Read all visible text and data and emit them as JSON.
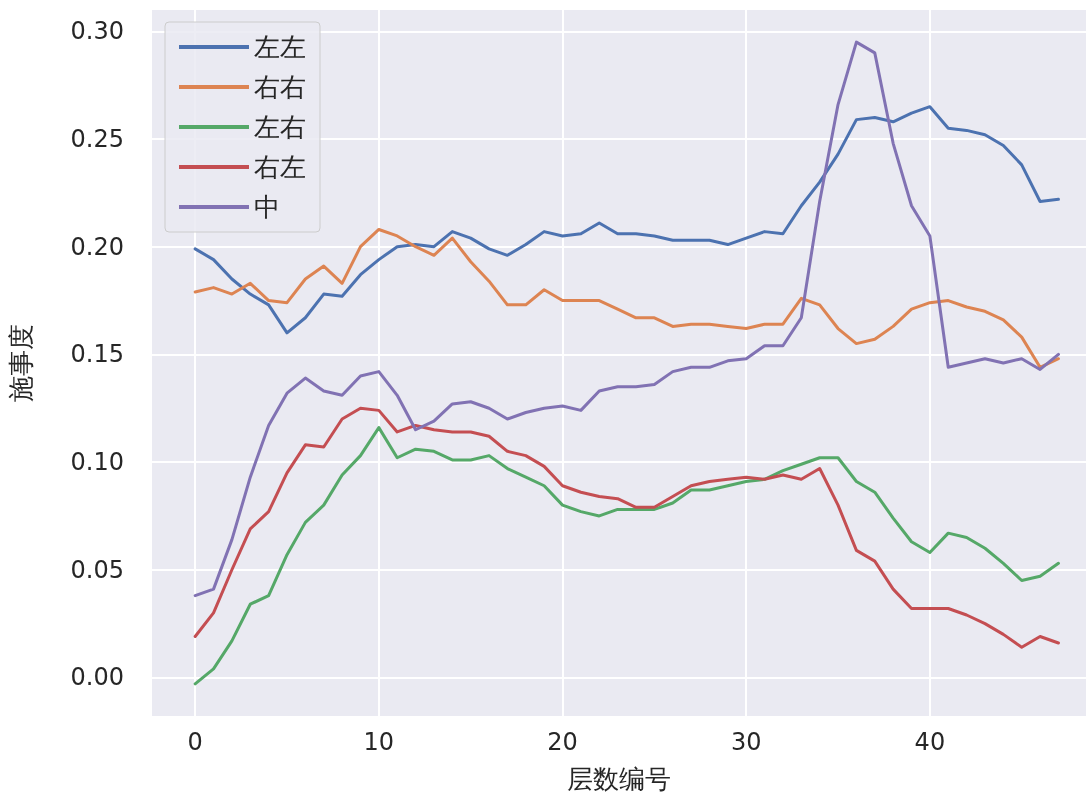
{
  "chart_data": {
    "type": "line",
    "xlabel": "层数编号",
    "ylabel": "施事度",
    "x": [
      0,
      1,
      2,
      3,
      4,
      5,
      6,
      7,
      8,
      9,
      10,
      11,
      12,
      13,
      14,
      15,
      16,
      17,
      18,
      19,
      20,
      21,
      22,
      23,
      24,
      25,
      26,
      27,
      28,
      29,
      30,
      31,
      32,
      33,
      34,
      35,
      36,
      37,
      38,
      39,
      40,
      41,
      42,
      43,
      44,
      45,
      46,
      47
    ],
    "series": [
      {
        "name": "左左",
        "color": "#4c72b0",
        "values": [
          0.199,
          0.194,
          0.185,
          0.178,
          0.173,
          0.16,
          0.167,
          0.178,
          0.177,
          0.187,
          0.194,
          0.2,
          0.201,
          0.2,
          0.207,
          0.204,
          0.199,
          0.196,
          0.201,
          0.207,
          0.205,
          0.206,
          0.211,
          0.206,
          0.206,
          0.205,
          0.203,
          0.203,
          0.203,
          0.201,
          0.204,
          0.207,
          0.206,
          0.219,
          0.23,
          0.243,
          0.259,
          0.26,
          0.258,
          0.262,
          0.265,
          0.255,
          0.254,
          0.252,
          0.247,
          0.238,
          0.221,
          0.222
        ]
      },
      {
        "name": "右右",
        "color": "#dd8452",
        "values": [
          0.179,
          0.181,
          0.178,
          0.183,
          0.175,
          0.174,
          0.185,
          0.191,
          0.183,
          0.2,
          0.208,
          0.205,
          0.2,
          0.196,
          0.204,
          0.193,
          0.184,
          0.173,
          0.173,
          0.18,
          0.175,
          0.175,
          0.175,
          0.171,
          0.167,
          0.167,
          0.163,
          0.164,
          0.164,
          0.163,
          0.162,
          0.164,
          0.164,
          0.176,
          0.173,
          0.162,
          0.155,
          0.157,
          0.163,
          0.171,
          0.174,
          0.175,
          0.172,
          0.17,
          0.166,
          0.158,
          0.144,
          0.148
        ]
      },
      {
        "name": "左右",
        "color": "#55a868",
        "values": [
          -0.003,
          0.004,
          0.017,
          0.034,
          0.038,
          0.057,
          0.072,
          0.08,
          0.094,
          0.103,
          0.116,
          0.102,
          0.106,
          0.105,
          0.101,
          0.101,
          0.103,
          0.097,
          0.093,
          0.089,
          0.08,
          0.077,
          0.075,
          0.078,
          0.078,
          0.078,
          0.081,
          0.087,
          0.087,
          0.089,
          0.091,
          0.092,
          0.096,
          0.099,
          0.102,
          0.102,
          0.091,
          0.086,
          0.074,
          0.063,
          0.058,
          0.067,
          0.065,
          0.06,
          0.053,
          0.045,
          0.047,
          0.053
        ]
      },
      {
        "name": "右左",
        "color": "#c44e52",
        "values": [
          0.019,
          0.03,
          0.05,
          0.069,
          0.077,
          0.095,
          0.108,
          0.107,
          0.12,
          0.125,
          0.124,
          0.114,
          0.117,
          0.115,
          0.114,
          0.114,
          0.112,
          0.105,
          0.103,
          0.098,
          0.089,
          0.086,
          0.084,
          0.083,
          0.079,
          0.079,
          0.084,
          0.089,
          0.091,
          0.092,
          0.093,
          0.092,
          0.094,
          0.092,
          0.097,
          0.08,
          0.059,
          0.054,
          0.041,
          0.032,
          0.032,
          0.032,
          0.029,
          0.025,
          0.02,
          0.014,
          0.019,
          0.016
        ]
      },
      {
        "name": "中",
        "color": "#8172b3",
        "values": [
          0.038,
          0.041,
          0.064,
          0.093,
          0.117,
          0.132,
          0.139,
          0.133,
          0.131,
          0.14,
          0.142,
          0.131,
          0.115,
          0.119,
          0.127,
          0.128,
          0.125,
          0.12,
          0.123,
          0.125,
          0.126,
          0.124,
          0.133,
          0.135,
          0.135,
          0.136,
          0.142,
          0.144,
          0.144,
          0.147,
          0.148,
          0.154,
          0.154,
          0.167,
          0.221,
          0.266,
          0.295,
          0.29,
          0.248,
          0.219,
          0.205,
          0.144,
          0.146,
          0.148,
          0.146,
          0.148,
          0.143,
          0.15
        ]
      }
    ],
    "xlim": [
      -2.35,
      48.5
    ],
    "xticks": [
      0,
      10,
      20,
      30,
      40
    ],
    "ylim": [
      -0.0179,
      0.3099
    ],
    "yticks": [
      {
        "value": 0,
        "label": "0.00"
      },
      {
        "value": 0.05,
        "label": "0.05"
      },
      {
        "value": 0.1,
        "label": "0.10"
      },
      {
        "value": 0.15,
        "label": "0.15"
      },
      {
        "value": 0.2,
        "label": "0.20"
      },
      {
        "value": 0.25,
        "label": "0.25"
      },
      {
        "value": 0.3,
        "label": "0.30"
      }
    ],
    "grid": true,
    "legend": "top left",
    "marker": "none",
    "line_style": "solid"
  }
}
